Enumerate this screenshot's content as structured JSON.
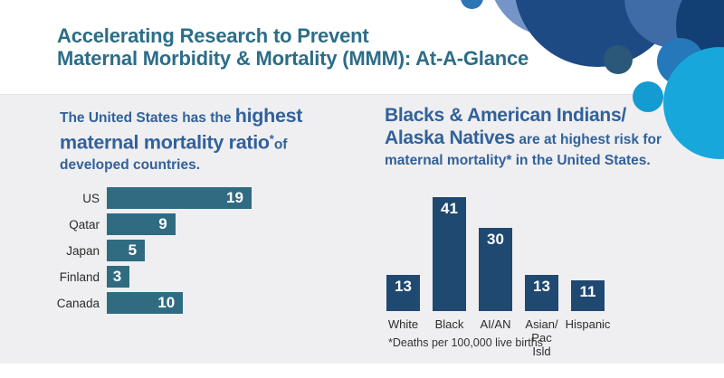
{
  "header": {
    "title_line1": "Accelerating Research to Prevent",
    "title_line2": "Maternal Morbidity & Mortality (MMM): At-A-Glance"
  },
  "left_intro": {
    "lead": "The United States has the ",
    "big1": "highest",
    "big2": "maternal mortality ratio",
    "sup": "*",
    "of": "of",
    "tail": "developed countries."
  },
  "right_intro": {
    "big1": "Blacks & American Indians/",
    "big2": "Alaska Natives",
    "rest1": " are at highest risk for",
    "rest2": "maternal mortality* in the United States."
  },
  "chart_data": [
    {
      "type": "bar",
      "orientation": "horizontal",
      "title": "The United States has the highest maternal mortality ratio* of developed countries.",
      "categories": [
        "US",
        "Qatar",
        "Japan",
        "Finland",
        "Canada"
      ],
      "values": [
        19,
        9,
        5,
        3,
        10
      ],
      "xlim": [
        0,
        20
      ],
      "value_labels": "inside-end",
      "bar_color": "#2f6c81",
      "grid": false,
      "legend": false
    },
    {
      "type": "bar",
      "orientation": "vertical",
      "title": "Blacks & American Indians/Alaska Natives are at highest risk for maternal mortality* in the United States.",
      "categories": [
        "White",
        "Black",
        "AI/AN",
        "Asian/\nPac Isld",
        "Hispanic"
      ],
      "values": [
        13,
        41,
        30,
        13,
        11
      ],
      "ylim": [
        0,
        42
      ],
      "value_labels": "inside-top",
      "bar_color": "#1f4971",
      "grid": false,
      "legend": false,
      "footnote": "*Deaths per 100,000 live births"
    }
  ],
  "colors": {
    "title_teal": "#2c6d88",
    "intro_blue": "#32619b",
    "teal_bar": "#2f6c81",
    "navy_bar": "#1f4971",
    "panel_gray": "#efeff1",
    "stripe_blue": "#2e78ba",
    "accent_cyan": "#17a7db",
    "accent_navy": "#1d4a82",
    "accent_periwinkle": "#7594c7"
  }
}
